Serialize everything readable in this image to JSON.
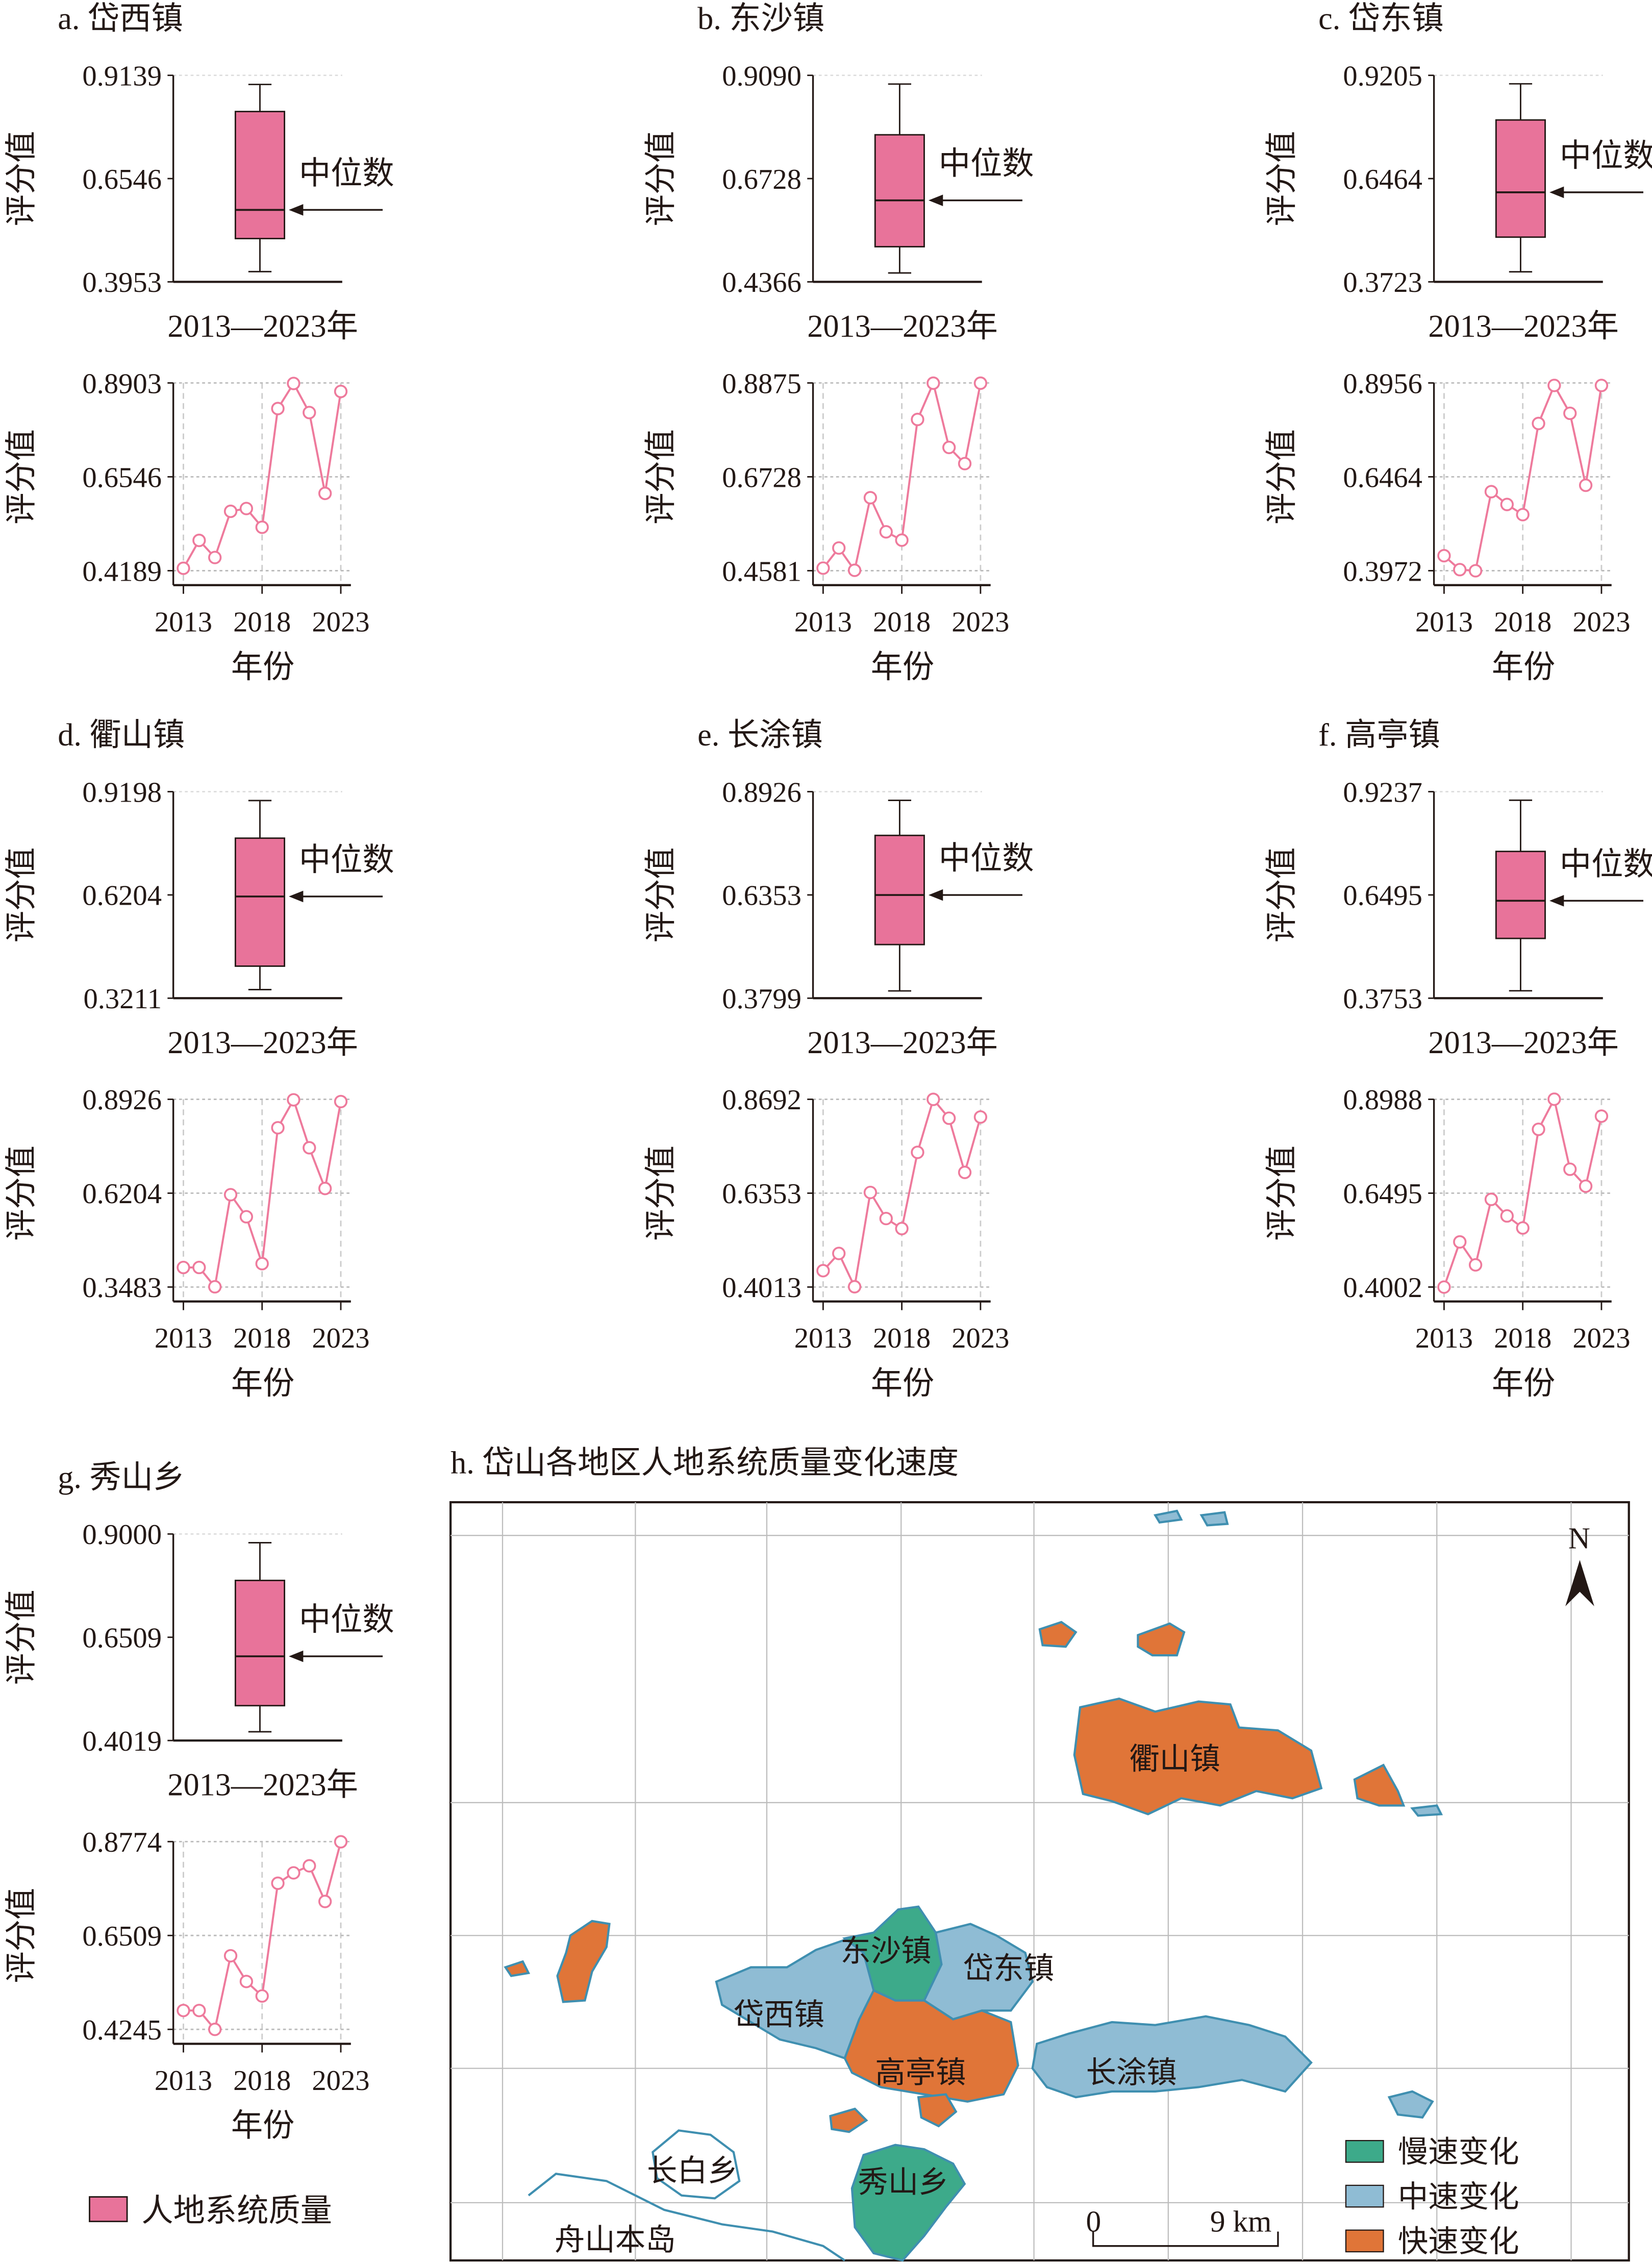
{
  "colors": {
    "pink": "#E8739A",
    "line": "#EE7A9C",
    "slow": "#3DAA8A",
    "medium": "#8FBCD4",
    "fast": "#E07538",
    "coast": "#3F8FB0"
  },
  "common": {
    "ylabel": "评分值",
    "xlabel": "年份",
    "box_xlabel": "2013—2023年",
    "median_label": "中位数",
    "legend": "人地系统质量"
  },
  "chart_data": [
    {
      "id": "a",
      "title": "a. 岱西镇",
      "type": "box+line",
      "box": {
        "ticks": [
          "0.3953",
          "0.6546",
          "0.9139"
        ],
        "ylim": [
          0.3953,
          0.9139
        ],
        "min": 0.421,
        "q1": 0.504,
        "median": 0.576,
        "q3": 0.823,
        "max": 0.891
      },
      "line": {
        "x": [
          2013,
          2014,
          2015,
          2016,
          2017,
          2018,
          2019,
          2020,
          2021,
          2022,
          2023
        ],
        "xticks": [
          "2013",
          "2018",
          "2023"
        ],
        "ticks": [
          "0.4189",
          "0.6546",
          "0.8903"
        ],
        "ylim": [
          0.4189,
          0.8903
        ],
        "values": [
          0.425,
          0.495,
          0.452,
          0.568,
          0.575,
          0.528,
          0.826,
          0.889,
          0.816,
          0.613,
          0.869
        ]
      }
    },
    {
      "id": "b",
      "title": "b. 东沙镇",
      "type": "box+line",
      "box": {
        "ticks": [
          "0.4366",
          "0.6728",
          "0.9090"
        ],
        "ylim": [
          0.4366,
          0.909
        ],
        "min": 0.457,
        "q1": 0.517,
        "median": 0.623,
        "q3": 0.773,
        "max": 0.889
      },
      "line": {
        "x": [
          2013,
          2014,
          2015,
          2016,
          2017,
          2018,
          2019,
          2020,
          2021,
          2022,
          2023
        ],
        "xticks": [
          "2013",
          "2018",
          "2023"
        ],
        "ticks": [
          "0.4581",
          "0.6728",
          "0.8875"
        ],
        "ylim": [
          0.4581,
          0.8875
        ],
        "values": [
          0.464,
          0.51,
          0.459,
          0.625,
          0.547,
          0.528,
          0.804,
          0.887,
          0.74,
          0.703,
          0.887
        ]
      }
    },
    {
      "id": "c",
      "title": "c. 岱东镇",
      "type": "box+line",
      "box": {
        "ticks": [
          "0.3723",
          "0.6464",
          "0.9205"
        ],
        "ylim": [
          0.3723,
          0.9205
        ],
        "min": 0.399,
        "q1": 0.491,
        "median": 0.61,
        "q3": 0.802,
        "max": 0.898
      },
      "line": {
        "x": [
          2013,
          2014,
          2015,
          2016,
          2017,
          2018,
          2019,
          2020,
          2021,
          2022,
          2023
        ],
        "xticks": [
          "2013",
          "2018",
          "2023"
        ],
        "ticks": [
          "0.3972",
          "0.6464",
          "0.8956"
        ],
        "ylim": [
          0.3972,
          0.8956
        ],
        "values": [
          0.437,
          0.4,
          0.397,
          0.607,
          0.573,
          0.546,
          0.788,
          0.889,
          0.815,
          0.624,
          0.889
        ]
      }
    },
    {
      "id": "d",
      "title": "d. 衢山镇",
      "type": "box+line",
      "box": {
        "ticks": [
          "0.3211",
          "0.6204",
          "0.9198"
        ],
        "ylim": [
          0.3211,
          0.9198
        ],
        "min": 0.346,
        "q1": 0.414,
        "median": 0.616,
        "q3": 0.785,
        "max": 0.894
      },
      "line": {
        "x": [
          2013,
          2014,
          2015,
          2016,
          2017,
          2018,
          2019,
          2020,
          2021,
          2022,
          2023
        ],
        "xticks": [
          "2013",
          "2018",
          "2023"
        ],
        "ticks": [
          "0.3483",
          "0.6204",
          "0.8926"
        ],
        "ylim": [
          0.3483,
          0.8926
        ],
        "values": [
          0.405,
          0.405,
          0.349,
          0.616,
          0.552,
          0.416,
          0.81,
          0.891,
          0.752,
          0.634,
          0.886
        ]
      }
    },
    {
      "id": "e",
      "title": "e. 长涂镇",
      "type": "box+line",
      "box": {
        "ticks": [
          "0.3799",
          "0.6353",
          "0.8926"
        ],
        "ylim": [
          0.3799,
          0.8926
        ],
        "min": 0.398,
        "q1": 0.513,
        "median": 0.636,
        "q3": 0.784,
        "max": 0.871
      },
      "line": {
        "x": [
          2013,
          2014,
          2015,
          2016,
          2017,
          2018,
          2019,
          2020,
          2021,
          2022,
          2023
        ],
        "xticks": [
          "2013",
          "2018",
          "2023"
        ],
        "ticks": [
          "0.4013",
          "0.6353",
          "0.8692"
        ],
        "ylim": [
          0.4013,
          0.8692
        ],
        "values": [
          0.442,
          0.485,
          0.402,
          0.637,
          0.572,
          0.547,
          0.737,
          0.869,
          0.822,
          0.687,
          0.825
        ]
      }
    },
    {
      "id": "f",
      "title": "f. 高亭镇",
      "type": "box+line",
      "box": {
        "ticks": [
          "0.3753",
          "0.6495",
          "0.9237"
        ],
        "ylim": [
          0.3753,
          0.9237
        ],
        "min": 0.395,
        "q1": 0.534,
        "median": 0.634,
        "q3": 0.765,
        "max": 0.901
      },
      "line": {
        "x": [
          2013,
          2014,
          2015,
          2016,
          2017,
          2018,
          2019,
          2020,
          2021,
          2022,
          2023
        ],
        "xticks": [
          "2013",
          "2018",
          "2023"
        ],
        "ticks": [
          "0.4002",
          "0.6495",
          "0.8988"
        ],
        "ylim": [
          0.4002,
          0.8988
        ],
        "values": [
          0.4,
          0.52,
          0.459,
          0.633,
          0.589,
          0.557,
          0.819,
          0.899,
          0.713,
          0.668,
          0.854
        ]
      }
    },
    {
      "id": "g",
      "title": "g. 秀山乡",
      "type": "box+line",
      "box": {
        "ticks": [
          "0.4019",
          "0.6509",
          "0.9000"
        ],
        "ylim": [
          0.4019,
          0.9
        ],
        "min": 0.423,
        "q1": 0.486,
        "median": 0.605,
        "q3": 0.788,
        "max": 0.879
      },
      "line": {
        "x": [
          2013,
          2014,
          2015,
          2016,
          2017,
          2018,
          2019,
          2020,
          2021,
          2022,
          2023
        ],
        "xticks": [
          "2013",
          "2018",
          "2023"
        ],
        "ticks": [
          "0.4245",
          "0.6509",
          "0.8774"
        ],
        "ylim": [
          0.4245,
          0.8774
        ],
        "values": [
          0.47,
          0.47,
          0.4245,
          0.602,
          0.54,
          0.505,
          0.777,
          0.802,
          0.819,
          0.733,
          0.877
        ]
      }
    }
  ],
  "map": {
    "title": "h. 岱山各地区人地系统质量变化速度",
    "north": "N",
    "labels": {
      "qushan": "衢山镇",
      "dongsha": "东沙镇",
      "daidong": "岱东镇",
      "daixi": "岱西镇",
      "gaoting": "高亭镇",
      "changtu": "长涂镇",
      "changbai": "长白乡",
      "xiushan": "秀山乡",
      "zhoushan": "舟山本岛"
    },
    "legend": [
      {
        "label": "慢速变化",
        "class": "slow"
      },
      {
        "label": "中速变化",
        "class": "medium"
      },
      {
        "label": "快速变化",
        "class": "fast"
      }
    ],
    "scale": {
      "start": "0",
      "end": "9 km"
    }
  }
}
